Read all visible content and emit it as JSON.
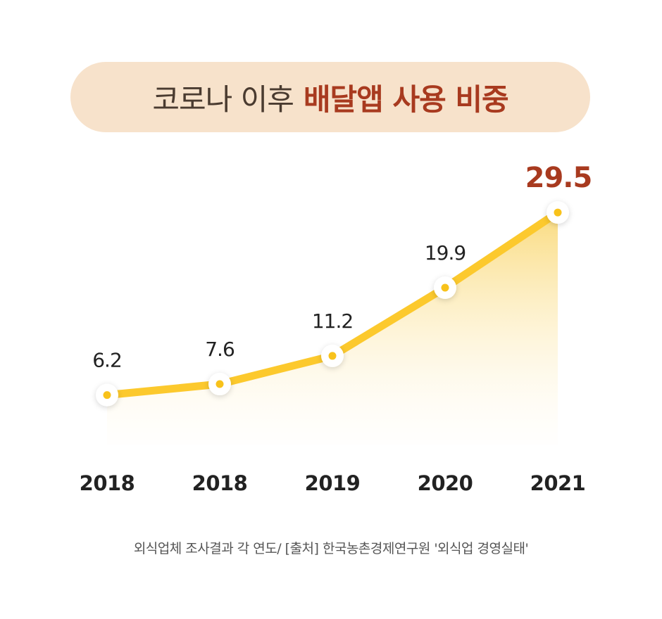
{
  "title": {
    "normal": "코로나 이후",
    "accent": "배달앱 사용 비중"
  },
  "colors": {
    "line": "#fcc92d",
    "point": "#f8c21b",
    "highlight": "#a83a1f",
    "label": "#222222",
    "pill": "#f7e2cb"
  },
  "chart_data": {
    "type": "area",
    "categories": [
      "2018",
      "2018",
      "2019",
      "2020",
      "2021"
    ],
    "values": [
      6.2,
      7.6,
      11.2,
      19.9,
      29.5
    ],
    "data_labels": [
      "6.2",
      "7.6",
      "11.2",
      "19.9",
      "29.5"
    ],
    "highlight_index": 4,
    "grid": false,
    "legend": "none"
  },
  "source": "외식업체 조사결과 각 연도/ [출처] 한국농촌경제연구원 '외식업 경영실태'"
}
